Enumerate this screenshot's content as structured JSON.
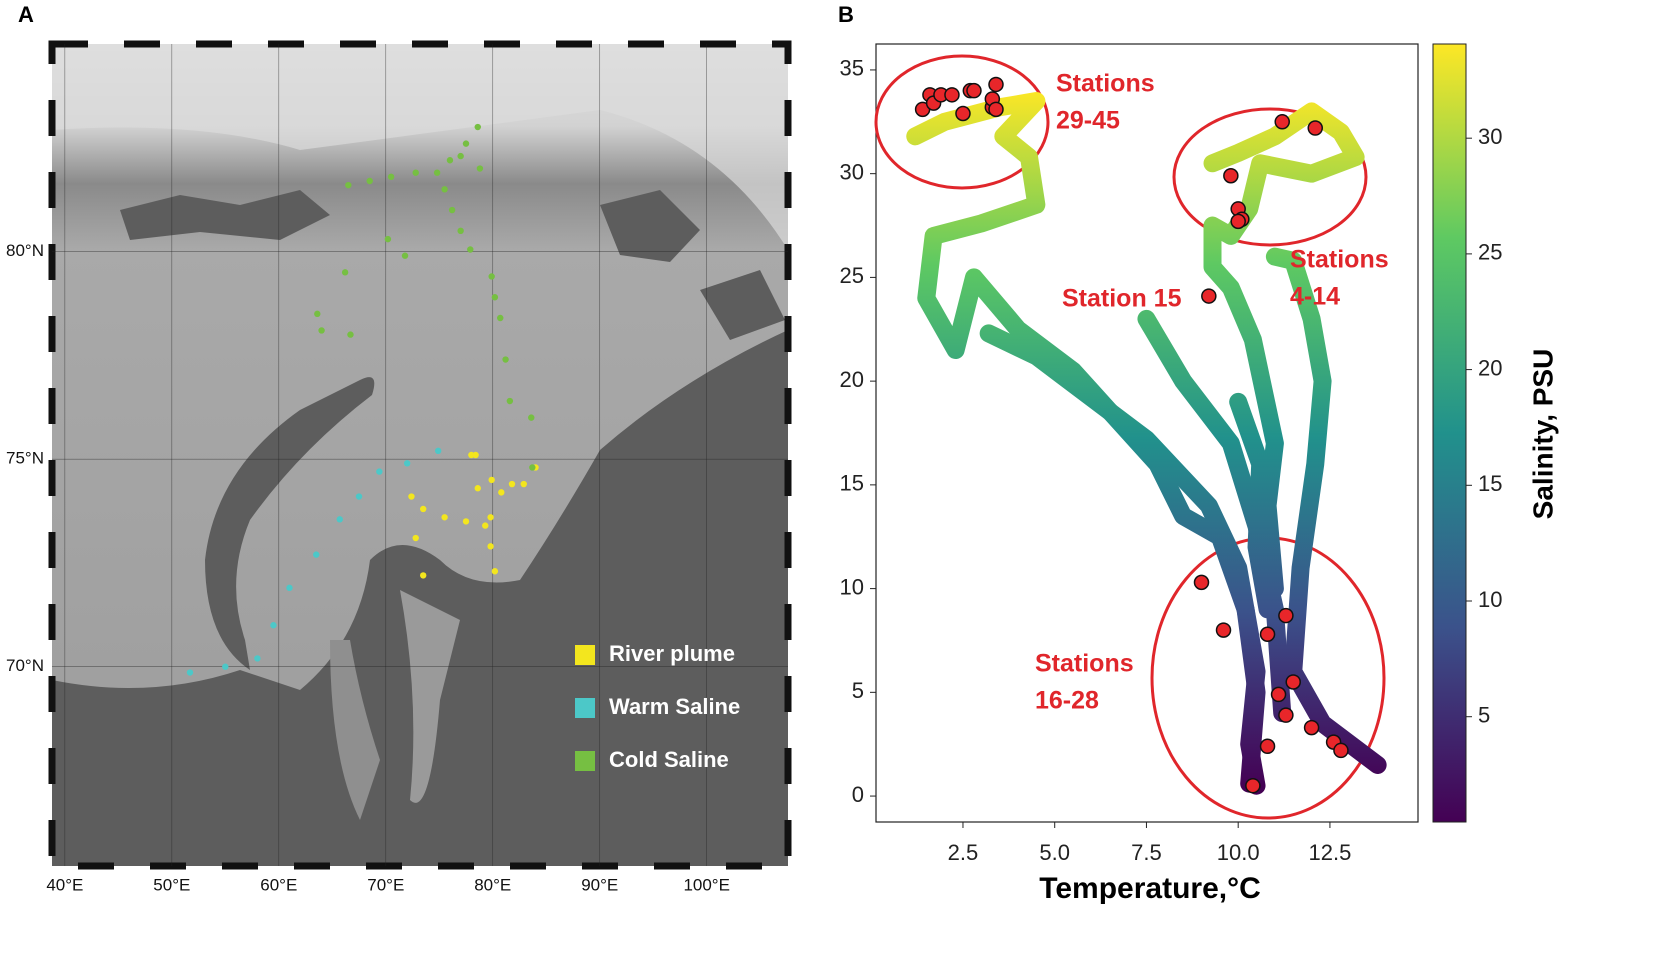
{
  "chart_data": [
    {
      "type": "map",
      "panel": "A",
      "xlim": [
        38.8,
        107.6
      ],
      "ylim": [
        65.2,
        85.0
      ],
      "xticks": [
        {
          "value": 40,
          "label": "40°E"
        },
        {
          "value": 50,
          "label": "50°E"
        },
        {
          "value": 60,
          "label": "60°E"
        },
        {
          "value": 70,
          "label": "70°E"
        },
        {
          "value": 80,
          "label": "80°E"
        },
        {
          "value": 90,
          "label": "90°E"
        },
        {
          "value": 100,
          "label": "100°E"
        }
      ],
      "yticks": [
        {
          "value": 70,
          "label": "70°N"
        },
        {
          "value": 75,
          "label": "75°N"
        },
        {
          "value": 80,
          "label": "80°N"
        }
      ],
      "grid": true,
      "legend": "lower right",
      "series": [
        {
          "name": "River plume",
          "color": "#f3e61e",
          "x": [
            73.5,
            72.8,
            72.4,
            73.5,
            75.5,
            77.5,
            79.3,
            79.8,
            80.2,
            79.8,
            78.6,
            78.0,
            78.4,
            79.9,
            80.8,
            81.8,
            82.9,
            84.0
          ],
          "y": [
            72.2,
            73.1,
            74.1,
            73.8,
            73.6,
            73.5,
            73.4,
            72.9,
            72.3,
            73.6,
            74.3,
            75.1,
            75.1,
            74.5,
            74.2,
            74.4,
            74.4,
            74.8
          ]
        },
        {
          "name": "Warm Saline",
          "color": "#4cc8c8",
          "x": [
            51.7,
            55.0,
            58.0,
            59.5,
            61.0,
            63.5,
            65.7,
            67.5,
            69.4,
            72.0,
            74.9
          ],
          "y": [
            69.86,
            70.0,
            70.2,
            71.0,
            71.9,
            72.7,
            73.55,
            74.1,
            74.7,
            74.9,
            75.2
          ]
        },
        {
          "name": "Cold Saline",
          "color": "#76bf42",
          "x": [
            66.5,
            68.5,
            70.5,
            72.8,
            74.8,
            76.0,
            77.5,
            78.6,
            78.8,
            77.0,
            75.5,
            76.2,
            77.0,
            77.9,
            79.9,
            80.2,
            80.7,
            81.2,
            81.6,
            83.6,
            83.7,
            70.2,
            71.8,
            66.2,
            63.6,
            66.7,
            64.0
          ],
          "y": [
            81.6,
            81.7,
            81.8,
            81.9,
            81.9,
            82.2,
            82.6,
            83.0,
            82.0,
            82.3,
            81.5,
            81.0,
            80.5,
            80.05,
            79.4,
            78.9,
            78.4,
            77.4,
            76.4,
            76.0,
            74.8,
            80.3,
            79.9,
            79.5,
            78.5,
            78.0,
            78.1
          ]
        }
      ]
    },
    {
      "type": "scatter",
      "panel": "B",
      "xlabel": "Temperature,°C",
      "xlim": [
        0.13,
        14.9
      ],
      "ylim": [
        -1.25,
        36.25
      ],
      "xticks": [
        2.5,
        {
          "value": 5,
          "label": "5.0"
        },
        7.5,
        {
          "value": 10,
          "label": "10.0"
        },
        12.5
      ],
      "yticks": [
        0,
        5,
        10,
        15,
        20,
        25,
        30,
        35
      ],
      "colorbar": {
        "label": "Salinity, PSU",
        "clim": [
          0.45,
          34.07
        ],
        "ticks": [
          5,
          10,
          15,
          20,
          25,
          30
        ],
        "colors": [
          "#440154",
          "#3b528b",
          "#21918c",
          "#5ec962",
          "#fde725"
        ]
      },
      "tracks": [
        {
          "x": [
            1.2,
            2.0,
            3.5,
            4.5,
            3.6,
            4.3,
            4.5,
            3.0,
            1.7,
            1.5,
            2.3,
            2.8,
            4.0,
            5.5,
            7.8,
            8.5,
            9.5,
            10.2,
            10.5,
            10.3
          ],
          "y": [
            31.8,
            32.5,
            33.2,
            33.5,
            31.8,
            30.8,
            28.5,
            27.6,
            27.0,
            24.0,
            21.5,
            25.0,
            22.5,
            20.5,
            16.0,
            13.5,
            12.5,
            9.0,
            5.0,
            0.6
          ]
        },
        {
          "x": [
            3.2,
            4.5,
            7.5,
            9.2,
            10.0,
            10.5,
            10.3,
            10.5
          ],
          "y": [
            22.3,
            21.2,
            17.2,
            14.0,
            11.0,
            6.0,
            2.5,
            0.5
          ]
        },
        {
          "x": [
            9.3,
            10.0,
            11.0,
            12.0,
            12.8,
            13.2,
            12.0,
            10.6,
            10.3,
            9.8,
            9.3,
            9.3,
            9.8,
            10.4,
            11.0,
            10.8,
            11.0
          ],
          "y": [
            30.5,
            31.0,
            31.8,
            33.0,
            32.0,
            30.8,
            30.0,
            30.5,
            28.3,
            27.0,
            27.5,
            25.5,
            24.5,
            22.0,
            17.0,
            14.0,
            10.0
          ]
        },
        {
          "x": [
            11.0,
            11.5,
            12.0,
            12.3,
            12.1,
            11.7,
            11.5,
            12.3,
            13.8
          ],
          "y": [
            26.0,
            25.8,
            23.0,
            20.0,
            16.0,
            11.0,
            6.0,
            3.5,
            1.5
          ]
        },
        {
          "x": [
            7.5,
            8.5,
            9.8,
            10.5,
            11.0,
            11.2
          ],
          "y": [
            23.0,
            20.0,
            17.0,
            13.0,
            9.0,
            4.0
          ]
        },
        {
          "x": [
            10.0,
            10.6,
            10.5,
            10.8
          ],
          "y": [
            19.0,
            16.0,
            12.0,
            9.0
          ]
        }
      ],
      "points": {
        "color": "#e8262a",
        "x": [
          1.4,
          1.6,
          1.7,
          1.9,
          2.2,
          2.7,
          2.8,
          2.5,
          3.3,
          3.4,
          3.3,
          3.4,
          11.2,
          12.1,
          9.8,
          10.0,
          10.1,
          10.0,
          9.2,
          9.0,
          9.6,
          10.8,
          11.3,
          11.5,
          11.1,
          11.3,
          12.0,
          12.6,
          12.8,
          10.8,
          10.4
        ],
        "y": [
          33.1,
          33.8,
          33.4,
          33.8,
          33.8,
          34.0,
          34.0,
          32.9,
          33.2,
          34.3,
          33.6,
          33.1,
          32.5,
          32.2,
          29.9,
          28.3,
          27.8,
          27.7,
          24.1,
          10.3,
          8.0,
          7.8,
          8.7,
          5.5,
          4.9,
          3.9,
          3.3,
          2.6,
          2.2,
          2.4,
          0.5
        ]
      },
      "annotations": [
        {
          "lines": [
            "Stations",
            "29-45"
          ]
        },
        {
          "lines": [
            "Stations",
            "4-14"
          ]
        },
        {
          "lines": [
            "Station 15"
          ]
        },
        {
          "lines": [
            "Stations",
            "16-28"
          ]
        }
      ]
    }
  ]
}
